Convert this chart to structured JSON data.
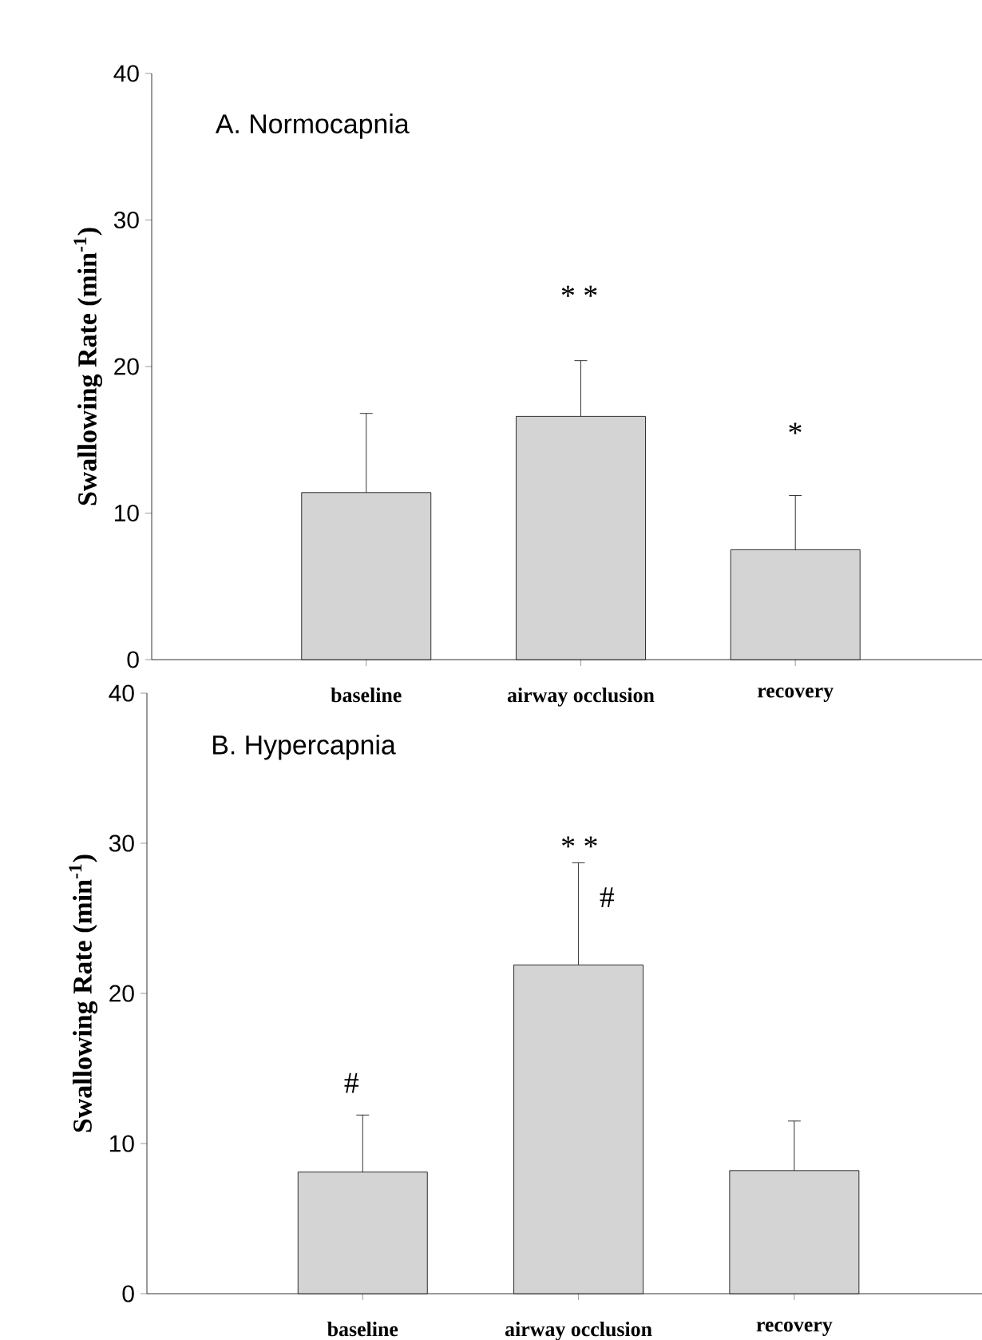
{
  "chart_data": [
    {
      "type": "bar",
      "title": "A. Normocapnia",
      "ylabel": "Swallowing Rate (min$^{-1}$)",
      "categories": [
        "baseline",
        "airway occlusion",
        "recovery"
      ],
      "values": [
        11.4,
        16.6,
        7.5
      ],
      "errors": [
        5.4,
        3.8,
        3.7
      ],
      "color": "#d4d4d4",
      "ylim": [
        0,
        40
      ],
      "yticks": [
        0,
        10,
        20,
        30,
        40
      ],
      "annotations": [
        "* *",
        "*"
      ]
    },
    {
      "type": "bar",
      "title": "B. Hypercapnia",
      "ylabel": "Swallowing Rate (min$^{-1}$)",
      "categories": [
        "baseline",
        "airway occlusion",
        "recovery"
      ],
      "values": [
        8.1,
        21.9,
        8.2
      ],
      "errors": [
        3.8,
        6.8,
        3.3
      ],
      "color": "#d4d4d4",
      "ylim": [
        0,
        40
      ],
      "yticks": [
        0,
        10,
        20,
        30,
        40
      ],
      "annotations": [
        "#",
        "* *",
        "#"
      ]
    }
  ]
}
